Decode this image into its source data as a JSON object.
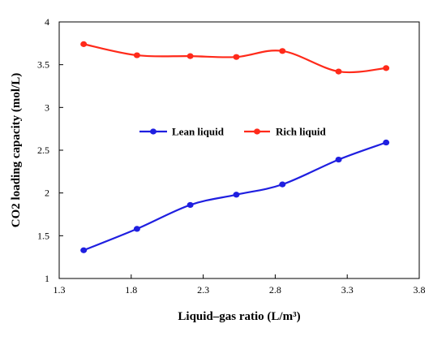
{
  "chart_data": {
    "type": "line",
    "title": "",
    "xlabel": "Liquid–gas ratio (L/m³)",
    "ylabel": "CO2 loading capacity (mol/L)",
    "xlim": [
      1.3,
      3.8
    ],
    "ylim": [
      1,
      4
    ],
    "x_ticks": [
      "1.3",
      "1.8",
      "2.3",
      "2.8",
      "3.3",
      "3.8"
    ],
    "y_ticks": [
      "1",
      "1.5",
      "2",
      "2.5",
      "3",
      "3.5",
      "4"
    ],
    "x_tick_values": [
      1.3,
      1.8,
      2.3,
      2.8,
      3.3,
      3.8
    ],
    "y_tick_values": [
      1,
      1.5,
      2,
      2.5,
      3,
      3.5,
      4
    ],
    "grid": false,
    "legend_placement": "center",
    "series": [
      {
        "name": "Lean liquid",
        "color": "#1f1fe0",
        "x": [
          1.47,
          1.84,
          2.21,
          2.53,
          2.85,
          3.24,
          3.57
        ],
        "values": [
          1.33,
          1.58,
          1.86,
          1.98,
          2.1,
          2.39,
          2.59
        ]
      },
      {
        "name": "Rich liquid",
        "color": "#ff2a1a",
        "x": [
          1.47,
          1.84,
          2.21,
          2.53,
          2.85,
          3.24,
          3.57
        ],
        "values": [
          3.74,
          3.61,
          3.6,
          3.59,
          3.66,
          3.42,
          3.46
        ]
      }
    ]
  }
}
